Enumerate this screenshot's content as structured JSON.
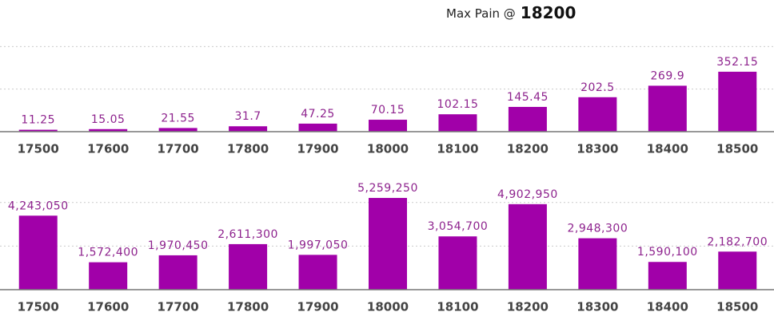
{
  "title": {
    "prefix": "Max Pain @",
    "strike": "18200"
  },
  "chart_data": [
    {
      "type": "bar",
      "color": "#a100a9",
      "grid": true,
      "categories": [
        "17500",
        "17600",
        "17700",
        "17800",
        "17900",
        "18000",
        "18100",
        "18200",
        "18300",
        "18400",
        "18500"
      ],
      "values": [
        11.25,
        15.05,
        21.55,
        31.7,
        47.25,
        70.15,
        102.15,
        145.45,
        202.5,
        269.9,
        352.15
      ],
      "ylim": [
        0,
        600
      ],
      "yticks": [
        0,
        250,
        500
      ]
    },
    {
      "type": "bar",
      "color": "#a100a9",
      "grid": true,
      "categories": [
        "17500",
        "17600",
        "17700",
        "17800",
        "17900",
        "18000",
        "18100",
        "18200",
        "18300",
        "18400",
        "18500"
      ],
      "values": [
        4243050,
        1572400,
        1970450,
        2611300,
        1997050,
        5259250,
        3054700,
        4902950,
        2948300,
        1590100,
        2182700
      ],
      "value_labels": [
        "4,243,050",
        "1,572,400",
        "1,970,450",
        "2,611,300",
        "1,997,050",
        "5,259,250",
        "3,054,700",
        "4,902,950",
        "2,948,300",
        "1,590,100",
        "2,182,700"
      ],
      "ylim": [
        0,
        7000000
      ],
      "yticks": [
        0,
        2500000,
        5000000
      ]
    }
  ]
}
